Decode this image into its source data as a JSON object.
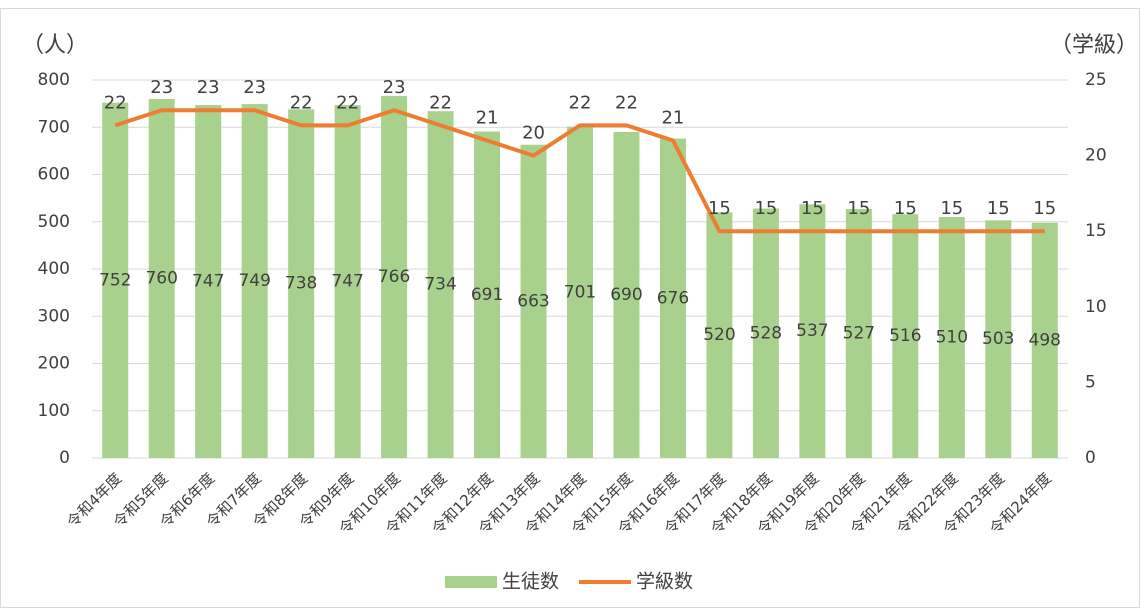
{
  "chart_data": {
    "type": "bar",
    "y_label": "（人）",
    "y2_label": "（学級）",
    "categories": [
      "令和4年度",
      "令和5年度",
      "令和6年度",
      "令和7年度",
      "令和8年度",
      "令和9年度",
      "令和10年度",
      "令和11年度",
      "令和12年度",
      "令和13年度",
      "令和14年度",
      "令和15年度",
      "令和16年度",
      "令和17年度",
      "令和18年度",
      "令和19年度",
      "令和20年度",
      "令和21年度",
      "令和22年度",
      "令和23年度",
      "令和24年度"
    ],
    "series": [
      {
        "name": "生徒数",
        "type": "bar",
        "color": "#a9d18e",
        "values": [
          752,
          760,
          747,
          749,
          738,
          747,
          766,
          734,
          691,
          663,
          701,
          690,
          676,
          520,
          528,
          537,
          527,
          516,
          510,
          503,
          498
        ]
      },
      {
        "name": "学級数",
        "type": "line",
        "axis": "y2",
        "color": "#ed7d31",
        "values": [
          22,
          23,
          23,
          23,
          22,
          22,
          23,
          22,
          21,
          20,
          22,
          22,
          21,
          15,
          15,
          15,
          15,
          15,
          15,
          15,
          15
        ]
      }
    ],
    "ylim": [
      0,
      800
    ],
    "yticks": [
      0,
      100,
      200,
      300,
      400,
      500,
      600,
      700,
      800
    ],
    "y2lim": [
      0,
      25
    ],
    "y2ticks": [
      0,
      5,
      10,
      15,
      20,
      25
    ],
    "grid": true,
    "legend": "bottom"
  }
}
